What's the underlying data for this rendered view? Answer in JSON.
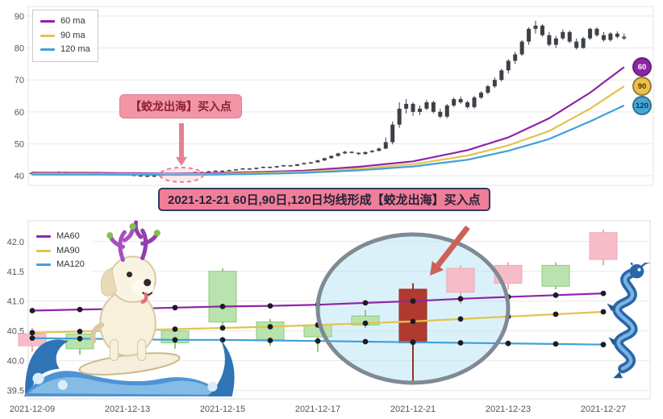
{
  "annotations": {
    "buy_label": "【蛟龙出海】买入点",
    "banner": "2021-12-21 60日,90日,120日均线形成【蛟龙出海】买入点"
  },
  "chart_data": [
    {
      "type": "candlestick",
      "panel": "top",
      "title": "",
      "ylim": [
        37,
        93
      ],
      "y_ticks": [
        "90",
        "80",
        "70",
        "60",
        "50",
        "40"
      ],
      "grid": true,
      "legend_position": "top-left",
      "legend": [
        "60 ma",
        "90 ma",
        "120 ma"
      ],
      "candle_color": "#3c4148",
      "candles_ohlc": [
        [
          40.6,
          41.0,
          40.4,
          40.9
        ],
        [
          40.9,
          41.2,
          40.7,
          41.0
        ],
        [
          41.0,
          41.1,
          40.4,
          40.6
        ],
        [
          40.6,
          41.1,
          40.5,
          40.9
        ],
        [
          40.9,
          41.4,
          40.8,
          41.2
        ],
        [
          41.2,
          41.3,
          40.6,
          40.7
        ],
        [
          40.7,
          40.9,
          40.3,
          40.5
        ],
        [
          40.5,
          41.0,
          40.4,
          40.9
        ],
        [
          40.9,
          41.3,
          40.8,
          41.1
        ],
        [
          41.1,
          41.2,
          40.6,
          40.8
        ],
        [
          40.8,
          40.9,
          40.2,
          40.4
        ],
        [
          40.4,
          40.8,
          40.3,
          40.6
        ],
        [
          40.6,
          41.0,
          40.5,
          40.9
        ],
        [
          40.9,
          41.0,
          40.5,
          40.7
        ],
        [
          40.7,
          40.8,
          40.1,
          40.3
        ],
        [
          40.3,
          40.5,
          39.9,
          40.1
        ],
        [
          40.1,
          40.3,
          39.8,
          40.0
        ],
        [
          40.0,
          40.2,
          39.7,
          39.9
        ],
        [
          39.9,
          40.2,
          39.5,
          40.1
        ],
        [
          40.1,
          40.4,
          39.9,
          40.3
        ],
        [
          40.3,
          40.6,
          40.2,
          40.5
        ],
        [
          40.5,
          40.8,
          40.4,
          40.7
        ],
        [
          40.7,
          41.0,
          40.6,
          40.9
        ],
        [
          40.9,
          41.1,
          40.7,
          41.0
        ],
        [
          41.0,
          41.3,
          40.9,
          41.2
        ],
        [
          41.2,
          41.3,
          40.9,
          41.1
        ],
        [
          41.1,
          41.5,
          41.0,
          41.4
        ],
        [
          41.4,
          41.7,
          41.3,
          41.6
        ],
        [
          41.6,
          41.7,
          41.3,
          41.5
        ],
        [
          41.5,
          41.9,
          41.4,
          41.8
        ],
        [
          41.8,
          42.1,
          41.7,
          42.0
        ],
        [
          42.0,
          42.4,
          41.9,
          42.3
        ],
        [
          42.3,
          42.4,
          42.0,
          42.1
        ],
        [
          42.1,
          42.6,
          42.0,
          42.5
        ],
        [
          42.5,
          42.9,
          42.4,
          42.8
        ],
        [
          42.8,
          42.9,
          42.5,
          42.6
        ],
        [
          42.6,
          43.1,
          42.5,
          43.0
        ],
        [
          43.0,
          43.4,
          42.9,
          43.3
        ],
        [
          43.3,
          43.4,
          43.0,
          43.1
        ],
        [
          43.1,
          43.7,
          43.0,
          43.6
        ],
        [
          43.6,
          44.1,
          43.5,
          44.0
        ],
        [
          44.0,
          44.4,
          43.8,
          44.2
        ],
        [
          44.2,
          45.0,
          44.1,
          44.8
        ],
        [
          44.8,
          45.7,
          44.6,
          45.5
        ],
        [
          45.5,
          46.4,
          45.3,
          46.2
        ],
        [
          46.2,
          47.2,
          46.0,
          47.0
        ],
        [
          47.0,
          47.8,
          46.8,
          47.5
        ],
        [
          47.5,
          47.7,
          47.0,
          47.2
        ],
        [
          47.2,
          47.3,
          46.5,
          46.8
        ],
        [
          46.8,
          47.6,
          46.6,
          47.4
        ],
        [
          47.4,
          48.1,
          47.2,
          47.8
        ],
        [
          47.8,
          48.9,
          47.6,
          48.5
        ],
        [
          48.5,
          52.0,
          48.3,
          50.5
        ],
        [
          50.5,
          57.0,
          49.8,
          56.0
        ],
        [
          56.0,
          63.0,
          55.0,
          61.0
        ],
        [
          61.0,
          64.0,
          59.5,
          62.5
        ],
        [
          62.5,
          63.0,
          58.8,
          60.0
        ],
        [
          60.0,
          62.0,
          59.0,
          61.0
        ],
        [
          61.0,
          63.8,
          60.5,
          63.0
        ],
        [
          63.0,
          63.5,
          59.5,
          60.0
        ],
        [
          60.0,
          61.0,
          58.0,
          58.5
        ],
        [
          58.5,
          62.5,
          58.0,
          62.0
        ],
        [
          62.0,
          64.5,
          61.5,
          64.0
        ],
        [
          64.0,
          64.8,
          62.5,
          63.0
        ],
        [
          63.0,
          63.5,
          61.0,
          61.5
        ],
        [
          61.5,
          65.0,
          61.0,
          64.5
        ],
        [
          64.5,
          66.5,
          64.0,
          66.0
        ],
        [
          66.0,
          68.5,
          65.5,
          68.0
        ],
        [
          68.0,
          70.8,
          67.5,
          70.0
        ],
        [
          70.0,
          73.5,
          69.5,
          73.0
        ],
        [
          73.0,
          76.5,
          72.0,
          76.0
        ],
        [
          76.0,
          78.8,
          75.0,
          78.0
        ],
        [
          78.0,
          82.5,
          77.5,
          82.0
        ],
        [
          82.0,
          86.5,
          81.0,
          86.0
        ],
        [
          86.0,
          88.5,
          84.5,
          87.0
        ],
        [
          87.0,
          87.5,
          83.5,
          84.0
        ],
        [
          84.0,
          85.0,
          80.5,
          81.0
        ],
        [
          81.0,
          83.8,
          80.0,
          83.0
        ],
        [
          83.0,
          85.8,
          82.5,
          85.0
        ],
        [
          85.0,
          85.5,
          81.5,
          82.0
        ],
        [
          82.0,
          83.0,
          79.5,
          80.0
        ],
        [
          80.0,
          83.5,
          79.8,
          83.0
        ],
        [
          83.0,
          86.3,
          82.5,
          86.0
        ],
        [
          86.0,
          86.5,
          83.5,
          84.0
        ],
        [
          84.0,
          85.0,
          82.0,
          82.5
        ],
        [
          82.5,
          85.0,
          82.0,
          84.5
        ],
        [
          84.5,
          85.2,
          83.0,
          83.5
        ],
        [
          83.5,
          84.5,
          82.5,
          83.0
        ]
      ],
      "series": [
        {
          "name": "60 ma",
          "color": "#8e24aa",
          "points": [
            [
              0,
              41.0
            ],
            [
              10,
              40.9
            ],
            [
              20,
              40.7
            ],
            [
              26,
              40.8
            ],
            [
              34,
              41.2
            ],
            [
              40,
              41.6
            ],
            [
              48,
              42.8
            ],
            [
              56,
              44.5
            ],
            [
              64,
              48.0
            ],
            [
              70,
              52.0
            ],
            [
              76,
              58.0
            ],
            [
              82,
              66.0
            ],
            [
              87,
              74.0
            ]
          ]
        },
        {
          "name": "90 ma",
          "color": "#e3c34e",
          "points": [
            [
              0,
              40.7
            ],
            [
              10,
              40.6
            ],
            [
              20,
              40.5
            ],
            [
              26,
              40.55
            ],
            [
              34,
              40.9
            ],
            [
              40,
              41.2
            ],
            [
              48,
              42.2
            ],
            [
              56,
              43.6
            ],
            [
              64,
              46.3
            ],
            [
              70,
              49.5
            ],
            [
              76,
              54.0
            ],
            [
              82,
              61.0
            ],
            [
              87,
              68.0
            ]
          ]
        },
        {
          "name": "120 ma",
          "color": "#41a0d9",
          "points": [
            [
              0,
              40.4
            ],
            [
              10,
              40.35
            ],
            [
              20,
              40.3
            ],
            [
              26,
              40.35
            ],
            [
              34,
              40.6
            ],
            [
              40,
              40.9
            ],
            [
              48,
              41.7
            ],
            [
              56,
              42.9
            ],
            [
              64,
              45.0
            ],
            [
              70,
              47.8
            ],
            [
              76,
              51.5
            ],
            [
              82,
              57.0
            ],
            [
              87,
              62.0
            ]
          ]
        }
      ],
      "end_badges": [
        {
          "label": "60",
          "fill": "#8e24aa",
          "text": "#ffffff"
        },
        {
          "label": "90",
          "fill": "#eec04a",
          "text": "#4a3a00"
        },
        {
          "label": "120",
          "fill": "#45a7d8",
          "text": "#0b3954"
        }
      ],
      "annotation": {
        "label": "【蛟龙出海】买入点",
        "target_index": 22,
        "target_value": 40.8
      }
    },
    {
      "type": "candlestick",
      "panel": "bottom",
      "title": "",
      "ylim": [
        39.4,
        42.2
      ],
      "y_ticks": [
        "42.0",
        "41.5",
        "41.0",
        "40.5",
        "40.0",
        "39.5"
      ],
      "x_tick_labels": [
        "2021-12-09",
        "2021-12-13",
        "2021-12-15",
        "2021-12-17",
        "2021-12-21",
        "2021-12-23",
        "2021-12-27"
      ],
      "grid": true,
      "legend_position": "top-left",
      "legend": [
        "MA60",
        "MA90",
        "MA120"
      ],
      "candle_colors": {
        "pink": {
          "fill": "#f6bdc8",
          "stroke": "#eca8b8"
        },
        "green": {
          "fill": "#b9e3ae",
          "stroke": "#8cc97e"
        },
        "red": {
          "fill": "#b03a2e",
          "stroke": "#943126"
        }
      },
      "candles": [
        {
          "d": "2021-12-09",
          "o": 40.25,
          "h": 40.55,
          "l": 40.15,
          "c": 40.45,
          "color": "pink"
        },
        {
          "d": "2021-12-10",
          "o": 40.45,
          "h": 40.5,
          "l": 40.1,
          "c": 40.2,
          "color": "green"
        },
        {
          "d": "2021-12-13",
          "o": 40.2,
          "h": 40.6,
          "l": 40.15,
          "c": 40.5,
          "color": "pink"
        },
        {
          "d": "2021-12-14",
          "o": 40.5,
          "h": 40.55,
          "l": 40.2,
          "c": 40.3,
          "color": "green"
        },
        {
          "d": "2021-12-15",
          "o": 41.5,
          "h": 41.55,
          "l": 40.6,
          "c": 40.65,
          "color": "green"
        },
        {
          "d": "2021-12-16",
          "o": 40.65,
          "h": 40.7,
          "l": 40.25,
          "c": 40.35,
          "color": "green"
        },
        {
          "d": "2021-12-17",
          "o": 40.6,
          "h": 40.65,
          "l": 40.15,
          "c": 40.4,
          "color": "green"
        },
        {
          "d": "2021-12-20",
          "o": 40.75,
          "h": 40.85,
          "l": 40.55,
          "c": 40.6,
          "color": "green"
        },
        {
          "d": "2021-12-21",
          "o": 40.3,
          "h": 41.3,
          "l": 39.6,
          "c": 41.2,
          "color": "red"
        },
        {
          "d": "2021-12-22",
          "o": 41.15,
          "h": 41.6,
          "l": 40.95,
          "c": 41.55,
          "color": "pink"
        },
        {
          "d": "2021-12-23",
          "o": 41.3,
          "h": 41.65,
          "l": 41.2,
          "c": 41.6,
          "color": "pink"
        },
        {
          "d": "2021-12-24",
          "o": 41.6,
          "h": 41.65,
          "l": 41.2,
          "c": 41.25,
          "color": "green"
        },
        {
          "d": "2021-12-27",
          "o": 41.7,
          "h": 42.2,
          "l": 41.6,
          "c": 42.15,
          "color": "pink"
        }
      ],
      "series": [
        {
          "name": "MA60",
          "color": "#8e24aa",
          "values": [
            40.84,
            40.86,
            40.87,
            40.89,
            40.91,
            40.92,
            40.94,
            40.97,
            41.0,
            41.04,
            41.07,
            41.1,
            41.13
          ]
        },
        {
          "name": "MA90",
          "color": "#e3c34e",
          "values": [
            40.47,
            40.49,
            40.51,
            40.53,
            40.55,
            40.57,
            40.6,
            40.63,
            40.66,
            40.7,
            40.74,
            40.78,
            40.82
          ]
        },
        {
          "name": "MA120",
          "color": "#41a0d9",
          "values": [
            40.38,
            40.37,
            40.36,
            40.35,
            40.35,
            40.34,
            40.33,
            40.32,
            40.31,
            40.3,
            40.29,
            40.28,
            40.27
          ]
        }
      ],
      "highlight": {
        "center_date": "2021-12-21",
        "note": "蛟龙出海 pattern highlight ellipse with arrow"
      }
    }
  ],
  "illustrations": [
    "dog-surfing-wave-illustration",
    "blue-dragon-illustration"
  ]
}
